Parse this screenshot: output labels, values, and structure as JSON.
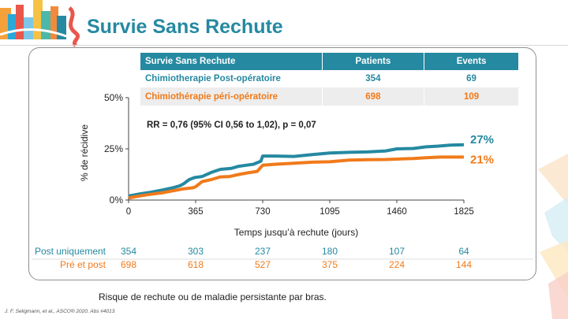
{
  "slide": {
    "title": "Survie Sans Rechute",
    "note": "Risque de rechute ou de maladie persistante par bras.",
    "citation": "J. F. Seligmann, et al., ASCO® 2020, Abs #4013"
  },
  "table": {
    "headers": [
      "Survie Sans Rechute",
      "Patients",
      "Events"
    ],
    "rows": [
      {
        "label": "Chimiotherapie Post-opératoire",
        "patients": "354",
        "events": "69"
      },
      {
        "label": "Chimiothérapie péri-opératoire",
        "patients": "698",
        "events": "109"
      }
    ]
  },
  "colors": {
    "post": "#2589a1",
    "peri": "#f07a1a",
    "title": "#2589a1"
  },
  "chart_data": {
    "type": "line",
    "title": "",
    "xlabel": "Temps jusqu’à rechute (jours)",
    "ylabel": "% de récidive",
    "xlim": [
      0,
      1825
    ],
    "ylim": [
      0,
      50
    ],
    "x_ticks": [
      0,
      365,
      730,
      1095,
      1460,
      1825
    ],
    "x_tick_labels": [
      "0",
      "365",
      "730",
      "1095",
      "1460",
      "1825"
    ],
    "y_ticks": [
      0,
      25,
      50
    ],
    "y_tick_labels": [
      "0%",
      "25%",
      "50%"
    ],
    "annotation": "RR = 0,76 (95% CI 0,56 to 1,02), p = 0,07",
    "series": [
      {
        "key": "post",
        "end_label": "27%",
        "x": [
          0,
          60,
          120,
          180,
          240,
          280,
          300,
          330,
          360,
          400,
          450,
          500,
          560,
          600,
          640,
          680,
          720,
          730,
          800,
          900,
          1000,
          1095,
          1200,
          1300,
          1400,
          1460,
          1550,
          1620,
          1680,
          1750,
          1825
        ],
        "y": [
          2,
          3,
          3.8,
          4.8,
          6,
          7,
          8,
          10,
          11,
          11.5,
          13.5,
          15,
          15.5,
          16.5,
          17,
          17.5,
          19,
          21.5,
          21.5,
          21.3,
          22.2,
          23,
          23.3,
          23.5,
          24,
          25,
          25.2,
          26,
          26.3,
          26.8,
          27
        ]
      },
      {
        "key": "peri",
        "end_label": "21%",
        "x": [
          0,
          60,
          120,
          180,
          240,
          300,
          350,
          365,
          400,
          450,
          500,
          550,
          600,
          650,
          700,
          730,
          800,
          900,
          1000,
          1095,
          1200,
          1300,
          1400,
          1460,
          1550,
          1620,
          1700,
          1825
        ],
        "y": [
          1,
          2,
          2.8,
          3.5,
          4.5,
          5.5,
          6,
          6.5,
          9,
          10,
          11.3,
          11.5,
          12.5,
          13.3,
          14,
          17,
          17.5,
          18,
          18.5,
          18.7,
          19.5,
          19.7,
          19.8,
          20,
          20.3,
          20.7,
          21,
          21
        ]
      }
    ],
    "at_risk": {
      "x": [
        0,
        365,
        730,
        1095,
        1460,
        1825
      ],
      "rows": [
        {
          "key": "post",
          "label": "Post uniquement",
          "values": [
            "354",
            "303",
            "237",
            "180",
            "107",
            "64"
          ]
        },
        {
          "key": "peri",
          "label": "Pré et post",
          "values": [
            "698",
            "618",
            "527",
            "375",
            "224",
            "144"
          ]
        }
      ]
    }
  }
}
